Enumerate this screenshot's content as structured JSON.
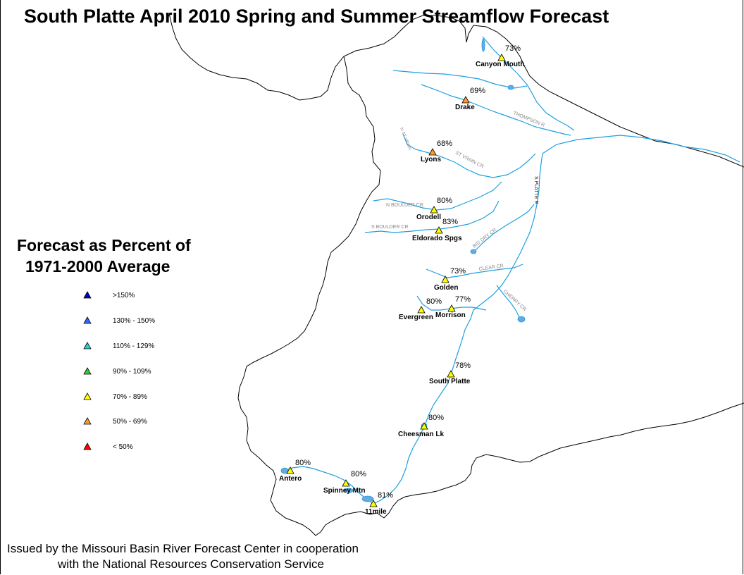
{
  "title": "South Platte April 2010 Spring and Summer Streamflow Forecast",
  "legend": {
    "title_line1": "Forecast as Percent of",
    "title_line2": "1971-2000 Average",
    "items": [
      {
        "label": ">150%",
        "color": "#0000cc"
      },
      {
        "label": "130% - 150%",
        "color": "#3366ff"
      },
      {
        "label": "110% - 129%",
        "color": "#33cccc"
      },
      {
        "label": "90% - 109%",
        "color": "#33cc33"
      },
      {
        "label": "70% - 89%",
        "color": "#ffff00"
      },
      {
        "label": "50% - 69%",
        "color": "#ff9933"
      },
      {
        "label": "< 50%",
        "color": "#ff0000"
      }
    ]
  },
  "stations": [
    {
      "name": "Canyon Mouth",
      "percent": "73%",
      "color": "#ffff00"
    },
    {
      "name": "Drake",
      "percent": "69%",
      "color": "#ff9933"
    },
    {
      "name": "Lyons",
      "percent": "68%",
      "color": "#ff9933"
    },
    {
      "name": "Orodell",
      "percent": "80%",
      "color": "#ffff00"
    },
    {
      "name": "Eldorado Spgs",
      "percent": "83%",
      "color": "#ffff00"
    },
    {
      "name": "Golden",
      "percent": "73%",
      "color": "#ffff00"
    },
    {
      "name": "Evergreen",
      "percent": "80%",
      "color": "#ffff00"
    },
    {
      "name": "Morrison",
      "percent": "77%",
      "color": "#ffff00"
    },
    {
      "name": "South Platte",
      "percent": "78%",
      "color": "#ffff00"
    },
    {
      "name": "Cheesman Lk",
      "percent": "80%",
      "color": "#ffff00"
    },
    {
      "name": "Antero",
      "percent": "80%",
      "color": "#ffff00"
    },
    {
      "name": "Spinney Mtn",
      "percent": "80%",
      "color": "#ffff00"
    },
    {
      "name": "11mile",
      "percent": "81%",
      "color": "#ffff00"
    }
  ],
  "rivers": {
    "thompson_r": "THOMPSON R",
    "st_vrain_cr": "ST VRAIN CR",
    "n_boulder_cr": "N BOULDER CR",
    "s_boulder_cr": "S BOULDER CR",
    "big_dry_cr": "BIG DRY CR",
    "s_platte_r": "S PLATTE R",
    "clear_cr": "CLEAR CR",
    "cherry_cr": "CHERRY CR",
    "n_st_vrain": "N ST VRAIN"
  },
  "footer": {
    "line1": "Issued by the Missouri Basin River Forecast Center in cooperation",
    "line2": "with the National Resources Conservation Service"
  },
  "colors": {
    "river": "#1f9fdf",
    "lake": "#6aa8e0",
    "boundary": "#000000"
  }
}
